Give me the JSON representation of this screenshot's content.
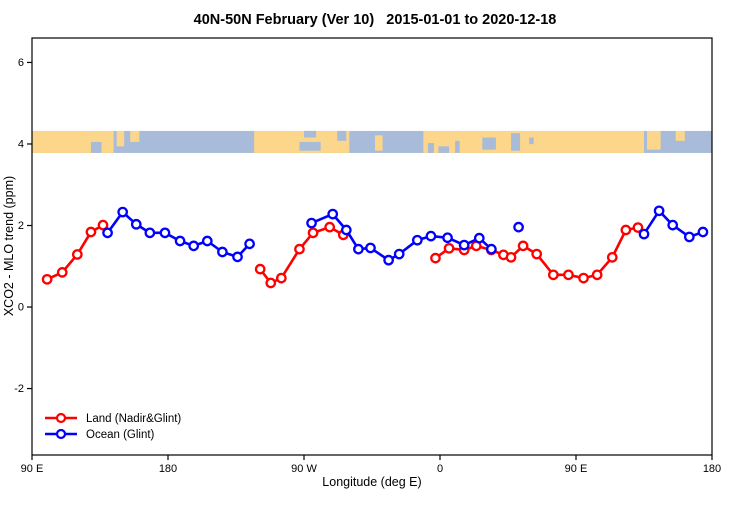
{
  "chart_data": {
    "type": "line",
    "title": "40N-50N February (Ver 10)   2015-01-01 to 2020-12-18",
    "xlabel": "Longitude (deg E)",
    "ylabel": "XCO2 - MLO trend (ppm)",
    "xlim": [
      90,
      540
    ],
    "ylim": [
      -3.63,
      6.6
    ],
    "x_axis_note": "longitude wraps eastward: 90E > 180 > 90W > 0 > 90E > 180",
    "xticks": [
      {
        "lon": 90,
        "label": "90 E"
      },
      {
        "lon": 180,
        "label": "180"
      },
      {
        "lon": 270,
        "label": "90 W"
      },
      {
        "lon": 360,
        "label": "0"
      },
      {
        "lon": 450,
        "label": "90 E"
      },
      {
        "lon": 540,
        "label": "180"
      }
    ],
    "yticks": [
      {
        "v": -2,
        "label": "-2"
      },
      {
        "v": 0,
        "label": "0"
      },
      {
        "v": 2,
        "label": "2"
      },
      {
        "v": 4,
        "label": "4"
      },
      {
        "v": 6,
        "label": "6"
      }
    ],
    "grid": false,
    "legend_position": "bottom-left",
    "legend": [
      {
        "label": "Land (Nadir&Glint)",
        "color": "#ff0000"
      },
      {
        "label": "Ocean (Glint)",
        "color": "#0000ff"
      }
    ],
    "series": [
      {
        "name": "Land (Nadir&Glint)",
        "color": "#ff0000",
        "segments": [
          [
            [
              100,
              0.68
            ],
            [
              110,
              0.85
            ],
            [
              120,
              1.29
            ],
            [
              129,
              1.84
            ],
            [
              137,
              2.01
            ]
          ],
          [
            [
              241,
              0.93
            ],
            [
              248,
              0.59
            ],
            [
              255,
              0.71
            ],
            [
              267,
              1.42
            ],
            [
              276,
              1.82
            ],
            [
              287,
              1.96
            ],
            [
              296,
              1.77
            ]
          ],
          [
            [
              357,
              1.2
            ],
            [
              366,
              1.44
            ],
            [
              376,
              1.4
            ],
            [
              384,
              1.5
            ],
            [
              394,
              1.4
            ],
            [
              402,
              1.28
            ],
            [
              407,
              1.22
            ],
            [
              415,
              1.5
            ],
            [
              424,
              1.3
            ],
            [
              435,
              0.79
            ],
            [
              445,
              0.79
            ],
            [
              455,
              0.71
            ],
            [
              464,
              0.79
            ],
            [
              474,
              1.22
            ],
            [
              483,
              1.89
            ],
            [
              491,
              1.95
            ]
          ]
        ]
      },
      {
        "name": "Ocean (Glint)",
        "color": "#0000ff",
        "segments": [
          [
            [
              140,
              1.82
            ],
            [
              150,
              2.33
            ],
            [
              159,
              2.03
            ],
            [
              168,
              1.82
            ],
            [
              178,
              1.82
            ],
            [
              188,
              1.62
            ],
            [
              197,
              1.5
            ],
            [
              206,
              1.62
            ],
            [
              216,
              1.35
            ],
            [
              226,
              1.23
            ],
            [
              234,
              1.55
            ]
          ],
          [
            [
              275,
              2.06
            ],
            [
              289,
              2.28
            ],
            [
              298,
              1.89
            ],
            [
              306,
              1.42
            ],
            [
              314,
              1.45
            ],
            [
              326,
              1.15
            ],
            [
              333,
              1.3
            ],
            [
              345,
              1.64
            ],
            [
              354,
              1.74
            ],
            [
              365,
              1.7
            ],
            [
              376,
              1.52
            ],
            [
              386,
              1.69
            ],
            [
              394,
              1.42
            ]
          ],
          [
            [
              412,
              1.96
            ]
          ],
          [
            [
              495,
              1.79
            ],
            [
              505,
              2.36
            ],
            [
              514,
              2.01
            ],
            [
              525,
              1.72
            ],
            [
              534,
              1.84
            ]
          ]
        ]
      }
    ],
    "map_band": {
      "description": "40N-50N world-map strip drawn across plot at y ~ 4",
      "y_center": 4.05,
      "y_halfheight": 0.27,
      "ocean_color": "#a8bcd9",
      "land_color": "#fbd68b",
      "land": [
        [
          90,
          144,
          0,
          1
        ],
        [
          146,
          151,
          0,
          0.7
        ],
        [
          155,
          161,
          0,
          0.5
        ],
        [
          237,
          300,
          0,
          1
        ],
        [
          317,
          322,
          0.2,
          0.9
        ],
        [
          349,
          495,
          0,
          1
        ],
        [
          497,
          506,
          0,
          0.85
        ],
        [
          516,
          522,
          0,
          0.45
        ]
      ],
      "water_overlays": [
        [
          129,
          136,
          0.5,
          1
        ],
        [
          270,
          278,
          0,
          0.3
        ],
        [
          267,
          281,
          0.5,
          0.9
        ],
        [
          292,
          298,
          0,
          0.45
        ],
        [
          352,
          356,
          0.55,
          1
        ],
        [
          359,
          366,
          0.7,
          1
        ],
        [
          370,
          373,
          0.45,
          1
        ],
        [
          388,
          397,
          0.3,
          0.85
        ],
        [
          407,
          413,
          0.1,
          0.9
        ],
        [
          419,
          422,
          0.3,
          0.6
        ]
      ]
    }
  }
}
